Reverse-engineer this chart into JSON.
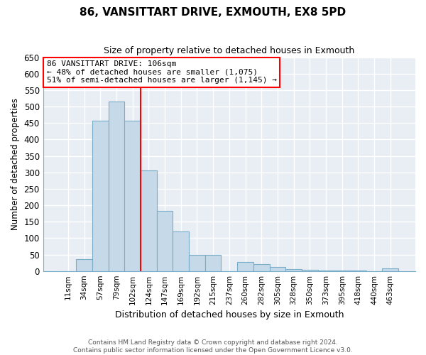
{
  "title": "86, VANSITTART DRIVE, EXMOUTH, EX8 5PD",
  "subtitle": "Size of property relative to detached houses in Exmouth",
  "xlabel": "Distribution of detached houses by size in Exmouth",
  "ylabel": "Number of detached properties",
  "bar_labels": [
    "11sqm",
    "34sqm",
    "57sqm",
    "79sqm",
    "102sqm",
    "124sqm",
    "147sqm",
    "169sqm",
    "192sqm",
    "215sqm",
    "237sqm",
    "260sqm",
    "282sqm",
    "305sqm",
    "328sqm",
    "350sqm",
    "373sqm",
    "395sqm",
    "418sqm",
    "440sqm",
    "463sqm"
  ],
  "bar_values": [
    0,
    35,
    458,
    515,
    458,
    305,
    183,
    120,
    50,
    50,
    0,
    28,
    20,
    13,
    5,
    3,
    2,
    1,
    1,
    0,
    7
  ],
  "bar_color": "#c5d9e8",
  "bar_edge_color": "#7aaec8",
  "red_line_bar_index": 4,
  "annotation_line1": "86 VANSITTART DRIVE: 106sqm",
  "annotation_line2": "← 48% of detached houses are smaller (1,075)",
  "annotation_line3": "51% of semi-detached houses are larger (1,145) →",
  "ylim": [
    0,
    650
  ],
  "yticks": [
    0,
    50,
    100,
    150,
    200,
    250,
    300,
    350,
    400,
    450,
    500,
    550,
    600,
    650
  ],
  "footer1": "Contains HM Land Registry data © Crown copyright and database right 2024.",
  "footer2": "Contains public sector information licensed under the Open Government Licence v3.0.",
  "bg_color": "#e8eef4",
  "grid_color": "#ffffff",
  "spine_color": "#7aaec8"
}
